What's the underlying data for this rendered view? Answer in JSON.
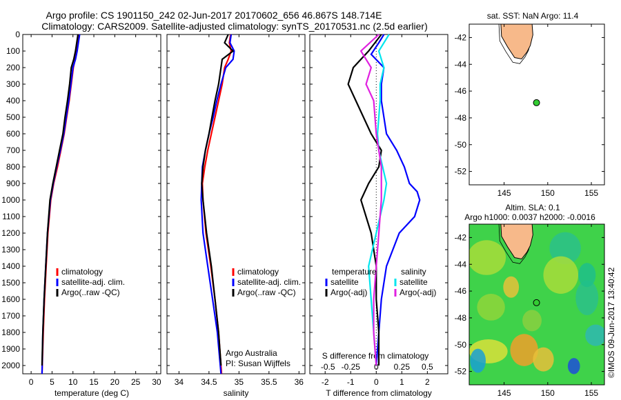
{
  "header": {
    "line1": "Argo profile: CS 1901150_242 02-Jun-2017 20170602_656 46.867S 148.714E",
    "line2": "Climatology: CARS2009. Satellite-adjusted climatology: synTS_20170531.nc (2.5d earlier)"
  },
  "colors": {
    "climatology": "#ff0000",
    "satellite": "#0000ff",
    "argo": "#000000",
    "salinity_satellite": "#00e5ee",
    "salinity_argo": "#e020e0",
    "land": "#f7b98a",
    "float_marker": "#33cc33"
  },
  "credit": "©IMOS 09-Jun-2017 13:40:42",
  "chart_data": [
    {
      "type": "line",
      "xlabel": "temperature (deg C)",
      "ylabel": "",
      "xlim": [
        -2,
        31
      ],
      "ylim": [
        2050,
        0
      ],
      "xticks": [
        0,
        5,
        10,
        15,
        20,
        25,
        30
      ],
      "yticks": [
        0,
        100,
        200,
        300,
        400,
        500,
        600,
        700,
        800,
        900,
        1000,
        1100,
        1200,
        1300,
        1400,
        1500,
        1600,
        1700,
        1800,
        1900,
        2000
      ],
      "legend": [
        "climatology",
        "satellite-adj. clim.",
        "Argo(..raw -QC)"
      ],
      "legend_position": "bottom",
      "series": [
        {
          "name": "climatology",
          "color": "#ff0000",
          "x": [
            11.5,
            11.2,
            10.9,
            10.5,
            10.1,
            9.6,
            9.1,
            8.5,
            7.9,
            7.1,
            6.3,
            5.4,
            4.7,
            4.0,
            3.6,
            3.2,
            2.9,
            2.6
          ],
          "y": [
            0,
            50,
            100,
            150,
            200,
            300,
            400,
            500,
            600,
            700,
            800,
            900,
            1000,
            1200,
            1400,
            1600,
            1800,
            2050
          ]
        },
        {
          "name": "satellite-adj. clim.",
          "color": "#0000ff",
          "x": [
            11.6,
            11.3,
            11.0,
            10.6,
            10.0,
            9.5,
            9.0,
            8.4,
            7.8,
            7.0,
            6.1,
            5.3,
            4.6,
            3.9,
            3.5,
            3.1,
            2.8,
            2.6
          ],
          "y": [
            0,
            50,
            100,
            150,
            200,
            300,
            400,
            500,
            600,
            700,
            800,
            900,
            1000,
            1200,
            1400,
            1600,
            1800,
            2050
          ]
        },
        {
          "name": "Argo(..raw -QC)",
          "color": "#000000",
          "x": [
            11.2,
            10.9,
            10.6,
            10.2,
            9.6,
            9.2,
            8.7,
            8.1,
            7.6,
            6.8,
            6.0,
            5.2,
            4.5,
            3.9,
            3.5,
            3.1,
            2.8,
            2.6
          ],
          "y": [
            0,
            50,
            100,
            150,
            200,
            300,
            400,
            500,
            600,
            700,
            800,
            900,
            1000,
            1200,
            1400,
            1600,
            1800,
            2000
          ]
        }
      ]
    },
    {
      "type": "line",
      "xlabel": "salinity",
      "xlim": [
        33.8,
        36.1
      ],
      "ylim": [
        2050,
        0
      ],
      "xticks": [
        34,
        34.5,
        35,
        35.5,
        36
      ],
      "legend": [
        "climatology",
        "satellite-adj. clim.",
        "Argo(..raw -QC)"
      ],
      "legend_position": "bottom",
      "annotation": [
        "Argo Australia",
        "PI: Susan Wijffels"
      ],
      "series": [
        {
          "name": "climatology",
          "color": "#ff0000",
          "x": [
            34.86,
            34.84,
            34.87,
            34.82,
            34.76,
            34.72,
            34.66,
            34.6,
            34.54,
            34.48,
            34.43,
            34.39,
            34.4,
            34.45,
            34.53,
            34.6,
            34.66,
            34.71
          ],
          "y": [
            0,
            50,
            100,
            150,
            200,
            300,
            400,
            500,
            600,
            700,
            800,
            900,
            1000,
            1200,
            1400,
            1600,
            1800,
            2050
          ]
        },
        {
          "name": "satellite-adj. clim.",
          "color": "#0000ff",
          "x": [
            34.87,
            34.85,
            34.92,
            34.9,
            34.78,
            34.7,
            34.63,
            34.57,
            34.5,
            34.44,
            34.39,
            34.38,
            34.37,
            34.4,
            34.48,
            34.56,
            34.64,
            34.7
          ],
          "y": [
            0,
            50,
            100,
            150,
            200,
            300,
            400,
            500,
            600,
            700,
            800,
            900,
            1000,
            1200,
            1400,
            1600,
            1800,
            2050
          ]
        },
        {
          "name": "Argo(..raw -QC)",
          "color": "#000000",
          "x": [
            34.82,
            34.76,
            34.9,
            34.72,
            34.7,
            34.66,
            34.6,
            34.55,
            34.5,
            34.44,
            34.4,
            34.38,
            34.4,
            34.46,
            34.54,
            34.6,
            34.66,
            34.7
          ],
          "y": [
            0,
            50,
            100,
            150,
            200,
            300,
            400,
            500,
            600,
            700,
            800,
            900,
            1000,
            1200,
            1400,
            1600,
            1800,
            2000
          ]
        }
      ]
    },
    {
      "type": "line",
      "xlabel": "T difference from climatology",
      "top_xlabel": "S difference from climatology",
      "xlim": [
        -2.6,
        2.8
      ],
      "ylim": [
        2050,
        0
      ],
      "xticks": [
        -2,
        -1,
        0,
        1,
        2
      ],
      "top_xticks": [
        "-0.5",
        "-0.25",
        "0",
        "0.25",
        "0.5"
      ],
      "legend_titles": [
        "temperature",
        "salinity"
      ],
      "legend": [
        "satellite",
        "Argo(-adj)",
        "satellite",
        "Argo(-adj)"
      ],
      "series": [
        {
          "name": "temperature satellite",
          "color": "#0000ff",
          "x": [
            0.3,
            0.1,
            -0.2,
            0.3,
            0.2,
            0.2,
            0.3,
            0.4,
            0.8,
            1.1,
            1.3,
            1.6,
            1.7,
            1.5,
            0.9,
            0.4,
            0.2,
            0.1,
            0.0
          ],
          "y": [
            0,
            50,
            120,
            200,
            300,
            400,
            500,
            600,
            700,
            800,
            900,
            950,
            1000,
            1100,
            1200,
            1400,
            1600,
            1800,
            2000
          ]
        },
        {
          "name": "temperature Argo(-adj)",
          "color": "#000000",
          "x": [
            0.2,
            -0.3,
            -0.9,
            -1.1,
            -0.8,
            -0.5,
            -0.2,
            0.2,
            0.1,
            -0.3,
            -0.6,
            -0.4,
            -0.2,
            0.0,
            0.0,
            0.1,
            0.1
          ],
          "y": [
            0,
            100,
            200,
            300,
            400,
            500,
            600,
            700,
            800,
            900,
            1000,
            1100,
            1200,
            1400,
            1600,
            1800,
            2000
          ]
        },
        {
          "name": "salinity satellite",
          "color": "#00e5ee",
          "x": [
            0.5,
            0.1,
            0.3,
            0.15,
            0.15,
            0.1,
            0.05,
            0.1,
            0.4,
            0.3,
            0.0,
            -0.3,
            -0.2,
            -0.1,
            0.0
          ],
          "y": [
            0,
            100,
            200,
            300,
            400,
            500,
            600,
            700,
            900,
            1000,
            1200,
            1400,
            1600,
            1800,
            2000
          ]
        },
        {
          "name": "salinity Argo(-adj)",
          "color": "#e020e0",
          "x": [
            0.1,
            -0.6,
            -0.2,
            -0.4,
            -0.1,
            0.0,
            0.2,
            0.2,
            0.1,
            0.0,
            -0.1,
            -0.1,
            0.0
          ],
          "y": [
            0,
            100,
            200,
            300,
            400,
            600,
            800,
            1000,
            1200,
            1400,
            1600,
            1800,
            2000
          ]
        }
      ]
    },
    {
      "type": "scatter",
      "title": "sat. SST: NaN Argo: 11.4",
      "xlim": [
        141,
        156.5
      ],
      "ylim": [
        -53,
        -41
      ],
      "xticks": [
        145,
        150,
        155
      ],
      "yticks": [
        -42,
        -44,
        -46,
        -48,
        -50,
        -52
      ],
      "points": [
        {
          "x": 148.714,
          "y": -46.867
        }
      ]
    },
    {
      "type": "heatmap",
      "title": "Altim. SLA: 0.1",
      "subtitle": "Argo h1000: 0.0037 h2000: -0.0016",
      "xlim": [
        141,
        156.5
      ],
      "ylim": [
        -53,
        -41
      ],
      "xticks": [
        145,
        150,
        155
      ],
      "yticks": [
        -42,
        -44,
        -46,
        -48,
        -50,
        -52
      ],
      "points": [
        {
          "x": 148.714,
          "y": -46.867
        }
      ]
    }
  ]
}
